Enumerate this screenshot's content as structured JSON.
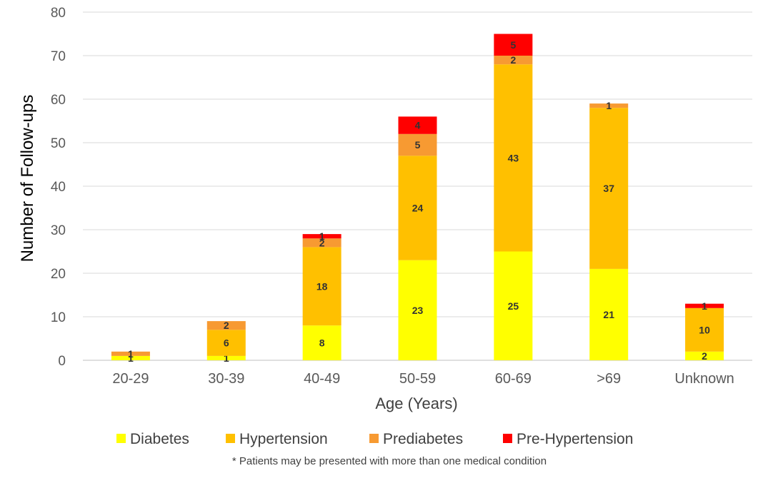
{
  "chart_data": {
    "type": "bar",
    "stacked": true,
    "categories": [
      "20-29",
      "30-39",
      "40-49",
      "50-59",
      "60-69",
      ">69",
      "Unknown"
    ],
    "series": [
      {
        "name": "Diabetes",
        "color": "#FFFF00",
        "values": [
          1,
          1,
          8,
          23,
          25,
          21,
          2
        ]
      },
      {
        "name": "Hypertension",
        "color": "#FFC000",
        "values": [
          0,
          6,
          18,
          24,
          43,
          37,
          10
        ]
      },
      {
        "name": "Prediabetes",
        "color": "#F79A32",
        "values": [
          1,
          2,
          2,
          5,
          2,
          1,
          0
        ]
      },
      {
        "name": "Pre-Hypertension",
        "color": "#FF0000",
        "values": [
          0,
          0,
          1,
          4,
          5,
          0,
          1
        ]
      }
    ],
    "xlabel": "Age (Years)",
    "ylabel": "Number of Follow-ups",
    "ylim": [
      0,
      80
    ],
    "yticks": [
      0,
      10,
      20,
      30,
      40,
      50,
      60,
      70,
      80
    ],
    "grid": true,
    "legend": "bottom",
    "footnote": "* Patients may be presented with more than one medical condition"
  }
}
